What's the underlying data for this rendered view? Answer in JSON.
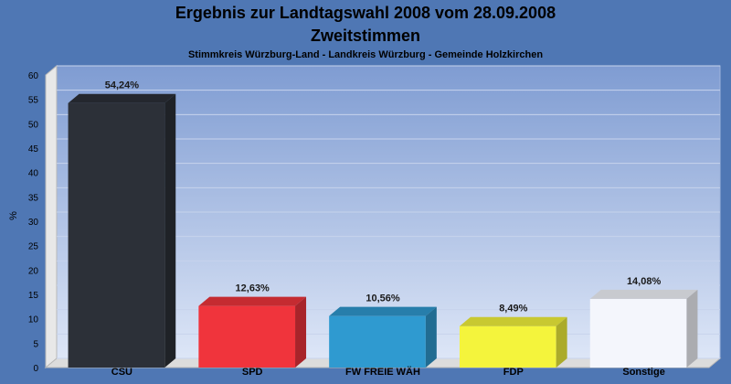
{
  "chart_data": {
    "type": "bar",
    "title": "Ergebnis zur Landtagswahl 2008 vom 28.09.2008",
    "subtitle": "Zweitstimmen",
    "caption": "Stimmkreis Würzburg-Land - Landkreis Würzburg - Gemeinde Holzkirchen",
    "ylabel": "%",
    "ylim": [
      0,
      60
    ],
    "yticks": [
      0,
      5,
      10,
      15,
      20,
      25,
      30,
      35,
      40,
      45,
      50,
      55,
      60
    ],
    "grid": true,
    "categories": [
      "CSU",
      "SPD",
      "FW FREIE WÄH",
      "FDP",
      "Sonstige"
    ],
    "values": [
      54.24,
      12.63,
      10.56,
      8.49,
      14.08
    ],
    "value_labels": [
      "54,24%",
      "12,63%",
      "10,56%",
      "8,49%",
      "14,08%"
    ],
    "colors": [
      "#2c3038",
      "#f0343c",
      "#2f9ad0",
      "#f4f43c",
      "#f4f6fc"
    ]
  }
}
